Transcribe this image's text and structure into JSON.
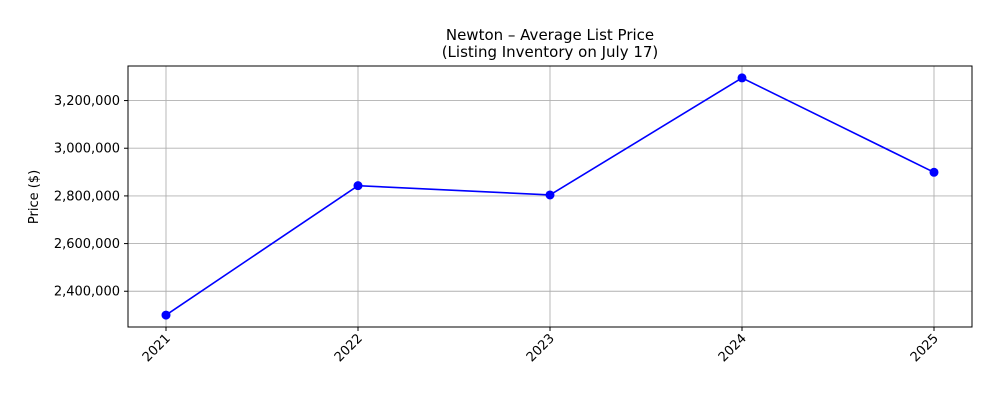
{
  "chart_data": {
    "type": "line",
    "title": "Newton – Average List Price",
    "subtitle": "(Listing Inventory on July 17)",
    "xlabel": "",
    "ylabel": "Price ($)",
    "x": [
      "2021",
      "2022",
      "2023",
      "2024",
      "2025"
    ],
    "series": [
      {
        "values": [
          2300000,
          2843000,
          2804000,
          3295000,
          2899000
        ],
        "color": "#0000ff",
        "marker": "circle"
      }
    ],
    "yticks": [
      2400000,
      2600000,
      2800000,
      3000000,
      3200000
    ],
    "ytick_labels": [
      "2,400,000",
      "2,600,000",
      "2,800,000",
      "3,000,000",
      "3,200,000"
    ],
    "ylim": [
      2250000,
      3345000
    ],
    "grid": true,
    "legend": "none"
  }
}
